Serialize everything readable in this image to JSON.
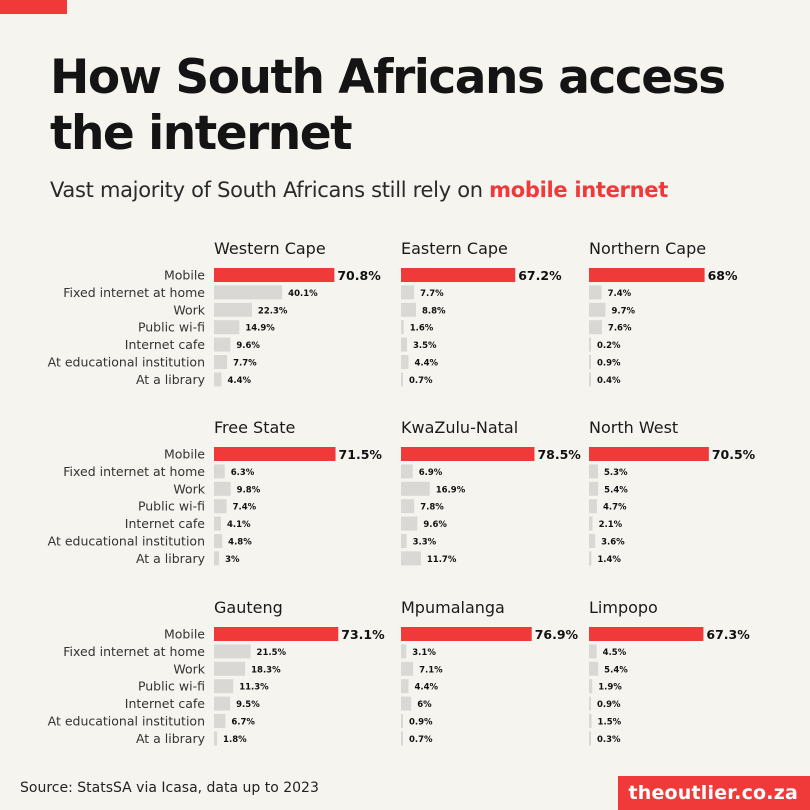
{
  "header": {
    "title": "How South Africans access the internet",
    "subtitle_prefix": "Vast majority of South Africans still rely on ",
    "subtitle_highlight": "mobile internet"
  },
  "footer": {
    "source": "Source: StatsSA via Icasa, data up to 2023",
    "brand": "theoutlier.co.za"
  },
  "colors": {
    "accent": "#f03a3a",
    "secondary_bar": "#d9d8d4",
    "background": "#f5f4ef"
  },
  "chart_data": [
    {
      "type": "bar",
      "title": "Western Cape",
      "categories": [
        "Mobile",
        "Fixed internet at home",
        "Work",
        "Public wi-fi",
        "Internet cafe",
        "At educational institution",
        "At a library"
      ],
      "values": [
        70.8,
        40.1,
        22.3,
        14.9,
        9.6,
        7.7,
        4.4
      ],
      "labels": [
        "70.8%",
        "40.1%",
        "22.3%",
        "14.9%",
        "9.6%",
        "7.7%",
        "4.4%"
      ]
    },
    {
      "type": "bar",
      "title": "Eastern Cape",
      "categories": [
        "Mobile",
        "Fixed internet at home",
        "Work",
        "Public wi-fi",
        "Internet cafe",
        "At educational institution",
        "At a library"
      ],
      "values": [
        67.2,
        7.7,
        8.8,
        1.6,
        3.5,
        4.4,
        0.7
      ],
      "labels": [
        "67.2%",
        "7.7%",
        "8.8%",
        "1.6%",
        "3.5%",
        "4.4%",
        "0.7%"
      ]
    },
    {
      "type": "bar",
      "title": "Northern Cape",
      "categories": [
        "Mobile",
        "Fixed internet at home",
        "Work",
        "Public wi-fi",
        "Internet cafe",
        "At educational institution",
        "At a library"
      ],
      "values": [
        68,
        7.4,
        9.7,
        7.6,
        0.2,
        0.9,
        0.4
      ],
      "labels": [
        "68%",
        "7.4%",
        "9.7%",
        "7.6%",
        "0.2%",
        "0.9%",
        "0.4%"
      ]
    },
    {
      "type": "bar",
      "title": "Free State",
      "categories": [
        "Mobile",
        "Fixed internet at home",
        "Work",
        "Public wi-fi",
        "Internet cafe",
        "At educational institution",
        "At a library"
      ],
      "values": [
        71.5,
        6.3,
        9.8,
        7.4,
        4.1,
        4.8,
        3
      ],
      "labels": [
        "71.5%",
        "6.3%",
        "9.8%",
        "7.4%",
        "4.1%",
        "4.8%",
        "3%"
      ]
    },
    {
      "type": "bar",
      "title": "KwaZulu-Natal",
      "categories": [
        "Mobile",
        "Fixed internet at home",
        "Work",
        "Public wi-fi",
        "Internet cafe",
        "At educational institution",
        "At a library"
      ],
      "values": [
        78.5,
        6.9,
        16.9,
        7.8,
        9.6,
        3.3,
        11.7
      ],
      "labels": [
        "78.5%",
        "6.9%",
        "16.9%",
        "7.8%",
        "9.6%",
        "3.3%",
        "11.7%"
      ]
    },
    {
      "type": "bar",
      "title": "North West",
      "categories": [
        "Mobile",
        "Fixed internet at home",
        "Work",
        "Public wi-fi",
        "Internet cafe",
        "At educational institution",
        "At a library"
      ],
      "values": [
        70.5,
        5.3,
        5.4,
        4.7,
        2.1,
        3.6,
        1.4
      ],
      "labels": [
        "70.5%",
        "5.3%",
        "5.4%",
        "4.7%",
        "2.1%",
        "3.6%",
        "1.4%"
      ]
    },
    {
      "type": "bar",
      "title": "Gauteng",
      "categories": [
        "Mobile",
        "Fixed internet at home",
        "Work",
        "Public wi-fi",
        "Internet cafe",
        "At educational institution",
        "At a library"
      ],
      "values": [
        73.1,
        21.5,
        18.3,
        11.3,
        9.5,
        6.7,
        1.8
      ],
      "labels": [
        "73.1%",
        "21.5%",
        "18.3%",
        "11.3%",
        "9.5%",
        "6.7%",
        "1.8%"
      ]
    },
    {
      "type": "bar",
      "title": "Mpumalanga",
      "categories": [
        "Mobile",
        "Fixed internet at home",
        "Work",
        "Public wi-fi",
        "Internet cafe",
        "At educational institution",
        "At a library"
      ],
      "values": [
        76.9,
        3.1,
        7.1,
        4.4,
        6,
        0.9,
        0.7
      ],
      "labels": [
        "76.9%",
        "3.1%",
        "7.1%",
        "4.4%",
        "6%",
        "0.9%",
        "0.7%"
      ]
    },
    {
      "type": "bar",
      "title": "Limpopo",
      "categories": [
        "Mobile",
        "Fixed internet at home",
        "Work",
        "Public wi-fi",
        "Internet cafe",
        "At educational institution",
        "At a library"
      ],
      "values": [
        67.3,
        4.5,
        5.4,
        1.9,
        0.9,
        1.5,
        0.3
      ],
      "labels": [
        "67.3%",
        "4.5%",
        "5.4%",
        "1.9%",
        "0.9%",
        "1.5%",
        "0.3%"
      ]
    }
  ]
}
